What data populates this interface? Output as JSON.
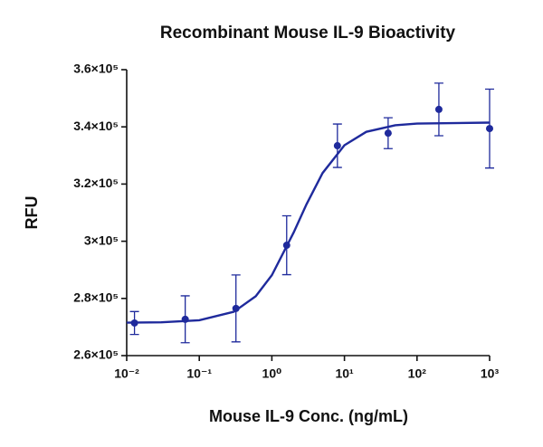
{
  "chart_data": {
    "type": "scatter",
    "title": "Recombinant Mouse IL-9 Bioactivity",
    "x_label": "Mouse IL-9 Conc. (ng/mL)",
    "y_label": "RFU",
    "x": [
      0.0128,
      0.064,
      0.32,
      1.6,
      8,
      40,
      200,
      1000
    ],
    "values": [
      271400,
      272700,
      276500,
      298600,
      333400,
      337800,
      346100,
      339400
    ],
    "errors": [
      4000,
      8200,
      11700,
      10300,
      7600,
      5400,
      9200,
      13800
    ],
    "curve": {
      "x": [
        0.01,
        0.03,
        0.1,
        0.3,
        0.6,
        1,
        2,
        3,
        5,
        10,
        20,
        50,
        100,
        1000
      ],
      "values": [
        271530,
        271660,
        272360,
        275330,
        280760,
        288130,
        303090,
        312920,
        323860,
        333570,
        338270,
        340570,
        341150,
        341490
      ]
    },
    "color": "#1f2a9c",
    "x_log": true,
    "xlim": [
      0.01,
      1000
    ],
    "xticks": [
      {
        "value": 0.01,
        "label": "10⁻²"
      },
      {
        "value": 0.1,
        "label": "10⁻¹"
      },
      {
        "value": 1,
        "label": "10⁰"
      },
      {
        "value": 10,
        "label": "10¹"
      },
      {
        "value": 100,
        "label": "10²"
      },
      {
        "value": 1000,
        "label": "10³"
      }
    ],
    "ylim": [
      260000,
      360000
    ],
    "yticks": [
      {
        "value": 260000,
        "label": "2.6×10⁵"
      },
      {
        "value": 280000,
        "label": "2.8×10⁵"
      },
      {
        "value": 300000,
        "label": "3×10⁵"
      },
      {
        "value": 320000,
        "label": "3.2×10⁵"
      },
      {
        "value": 340000,
        "label": "3.4×10⁵"
      },
      {
        "value": 360000,
        "label": "3.6×10⁵"
      }
    ],
    "grid": false
  }
}
